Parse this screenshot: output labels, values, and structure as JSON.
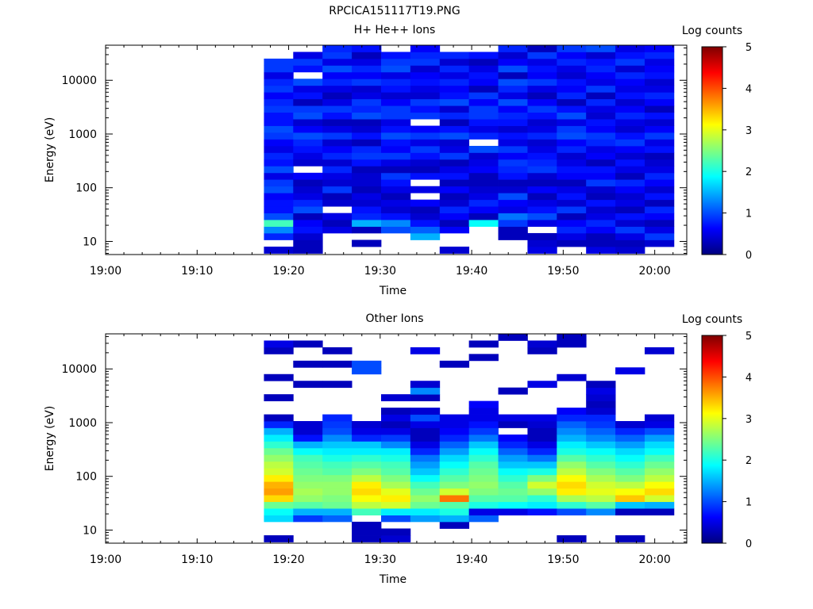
{
  "figure_title": "RPCICA151117T19.PNG",
  "chart_data": [
    {
      "type": "heatmap",
      "title": "H+ He++ Ions",
      "xlabel": "Time",
      "ylabel": "Energy (eV)",
      "colorbar_label": "Log counts",
      "x_tick_labels": [
        "19:00",
        "19:10",
        "19:20",
        "19:30",
        "19:40",
        "19:50",
        "20:00"
      ],
      "x_tick_minutes": [
        0,
        10,
        20,
        30,
        40,
        50,
        60
      ],
      "xlim_minutes": [
        0,
        63.5
      ],
      "y_scale": "log",
      "y_tick_labels": [
        "10",
        "100",
        "1000",
        "10000"
      ],
      "y_tick_values": [
        10,
        100,
        1000,
        10000
      ],
      "ylim": [
        5.7,
        45000
      ],
      "colorbar_ticks": [
        "0",
        "1",
        "2",
        "3",
        "4",
        "5"
      ],
      "color_range": [
        0,
        5
      ],
      "colormap": [
        "#00007f",
        "#0000ff",
        "#007fff",
        "#00ffff",
        "#7fff7f",
        "#ffff00",
        "#ff7f00",
        "#ff0000",
        "#7f0000"
      ],
      "time_bins_start_minutes": [
        17.3,
        20.5,
        23.7,
        26.9,
        30.1,
        33.3,
        36.5,
        39.7,
        42.9,
        46.1,
        49.3,
        52.5,
        55.7,
        58.9
      ],
      "time_bin_width_minutes": 3.2,
      "energy_bin_edges_ev": [
        6.0,
        8.0,
        10.7,
        14.3,
        19.0,
        25.4,
        33.8,
        45.1,
        60.1,
        80.2,
        107,
        143,
        190,
        254,
        338,
        451,
        601,
        802,
        1070,
        1426,
        1901,
        2535,
        3380,
        4507,
        6009,
        8013,
        10684,
        14245,
        18994,
        25325,
        33767,
        45000
      ],
      "log_counts": [
        [
          0.4,
          null,
          0.8,
          1.3,
          2.2,
          1.0,
          0.7,
          0.7,
          0.6,
          1.0,
          0.9,
          0.5,
          1.0,
          0.7,
          0.8,
          0.5,
          0.6,
          0.9,
          1.0,
          0.7,
          0.7,
          0.9,
          0.8,
          0.6,
          0.9,
          0.8,
          0.5,
          0.9,
          0.9,
          null,
          null
        ],
        [
          0.3,
          0.3,
          0.4,
          0.7,
          0.6,
          0.3,
          1.0,
          0.8,
          0.5,
          0.4,
          0.3,
          0.6,
          null,
          0.4,
          0.5,
          0.7,
          0.8,
          1.0,
          0.6,
          0.4,
          1.0,
          0.9,
          0.3,
          0.7,
          0.5,
          1.0,
          null,
          0.7,
          0.9,
          0.5,
          null
        ],
        [
          null,
          null,
          null,
          0.5,
          0.3,
          0.5,
          null,
          0.4,
          0.3,
          0.9,
          0.4,
          0.5,
          0.8,
          0.4,
          0.8,
          0.6,
          0.4,
          0.9,
          0.5,
          0.3,
          0.7,
          0.9,
          0.5,
          0.3,
          0.5,
          0.8,
          0.6,
          1.0,
          0.5,
          0.9,
          0.8
        ],
        [
          null,
          0.3,
          null,
          0.3,
          1.5,
          0.8,
          0.7,
          0.4,
          0.5,
          0.3,
          0.4,
          0.4,
          0.3,
          0.7,
          0.9,
          0.8,
          0.3,
          0.7,
          0.4,
          0.3,
          1.0,
          0.8,
          0.9,
          0.5,
          0.4,
          0.9,
          0.6,
          0.8,
          0.5,
          0.3,
          0.7
        ],
        [
          null,
          null,
          null,
          1.0,
          1.3,
          0.7,
          0.4,
          0.5,
          0.3,
          0.5,
          0.7,
          0.9,
          0.3,
          0.5,
          0.9,
          0.6,
          0.7,
          1.0,
          0.7,
          0.5,
          0.9,
          0.9,
          0.6,
          0.4,
          0.7,
          0.8,
          0.5,
          1.0,
          0.9,
          0.7,
          null
        ],
        [
          null,
          null,
          1.5,
          1.1,
          0.7,
          0.4,
          0.3,
          0.6,
          null,
          0.5,
          null,
          0.7,
          0.3,
          0.4,
          0.7,
          0.9,
          0.5,
          0.9,
          0.6,
          null,
          0.9,
          0.7,
          0.9,
          0.4,
          0.5,
          0.7,
          0.6,
          0.4,
          0.9,
          0.8,
          0.6
        ],
        [
          0.4,
          null,
          null,
          0.6,
          0.3,
          0.6,
          0.8,
          0.4,
          0.3,
          0.6,
          0.3,
          0.7,
          0.5,
          0.3,
          0.9,
          0.5,
          0.4,
          1.0,
          0.7,
          0.3,
          0.8,
          0.4,
          1.0,
          0.7,
          0.6,
          0.8,
          0.5,
          0.8,
          0.4,
          0.8,
          null
        ],
        [
          null,
          null,
          null,
          null,
          1.9,
          0.3,
          0.6,
          0.8,
          0.5,
          0.4,
          0.3,
          0.3,
          0.6,
          0.5,
          0.4,
          1.0,
          null,
          0.8,
          0.5,
          0.7,
          0.9,
          0.9,
          0.6,
          0.9,
          0.3,
          0.6,
          0.7,
          0.5,
          0.3,
          0.7,
          null
        ],
        [
          null,
          null,
          0.3,
          0.3,
          0.9,
          1.2,
          0.5,
          0.6,
          1.0,
          0.4,
          0.3,
          0.7,
          0.8,
          0.9,
          0.6,
          0.9,
          0.5,
          0.7,
          0.4,
          0.7,
          0.8,
          0.6,
          1.0,
          0.5,
          0.8,
          1.0,
          0.3,
          1.0,
          0.6,
          0.4,
          0.8
        ],
        [
          0.5,
          0.4,
          0.3,
          null,
          0.5,
          1.0,
          0.7,
          0.5,
          0.3,
          0.6,
          0.3,
          0.4,
          0.9,
          0.8,
          0.7,
          0.5,
          0.4,
          0.8,
          0.5,
          0.4,
          0.7,
          0.9,
          0.6,
          0.3,
          0.5,
          0.9,
          0.6,
          0.7,
          0.5,
          0.9,
          0.3
        ],
        [
          null,
          0.3,
          0.5,
          0.8,
          0.6,
          0.3,
          0.9,
          0.4,
          0.7,
          0.5,
          0.3,
          0.6,
          0.7,
          0.5,
          0.4,
          0.8,
          0.6,
          1.0,
          0.9,
          0.5,
          1.0,
          0.7,
          0.3,
          0.8,
          0.6,
          0.7,
          0.4,
          0.5,
          0.8,
          0.6,
          0.9
        ],
        [
          0.5,
          0.3,
          0.3,
          0.6,
          0.8,
          0.5,
          0.4,
          0.7,
          0.3,
          0.4,
          0.9,
          0.6,
          0.7,
          0.3,
          0.6,
          0.5,
          0.8,
          0.9,
          0.6,
          0.7,
          0.4,
          0.5,
          0.8,
          0.3,
          0.9,
          0.5,
          0.6,
          0.8,
          0.7,
          0.4,
          1.0
        ],
        [
          0.4,
          0.3,
          0.5,
          0.9,
          0.4,
          0.7,
          0.3,
          0.5,
          0.4,
          0.6,
          0.8,
          0.3,
          0.5,
          0.7,
          0.4,
          0.6,
          0.9,
          0.7,
          0.4,
          0.5,
          0.8,
          0.6,
          0.4,
          0.7,
          0.5,
          0.6,
          0.8,
          0.4,
          0.9,
          0.7,
          0.5
        ],
        [
          null,
          0.4,
          0.9,
          0.5,
          0.3,
          0.6,
          0.8,
          0.3,
          0.7,
          0.4,
          0.6,
          0.8,
          0.5,
          0.4,
          0.3,
          0.7,
          0.5,
          0.9,
          0.6,
          0.4,
          0.7,
          0.3,
          0.6,
          0.8,
          0.5,
          0.4,
          0.7,
          0.6,
          0.5,
          0.8,
          0.6
        ]
      ]
    },
    {
      "type": "heatmap",
      "title": "Other Ions",
      "xlabel": "Time",
      "ylabel": "Energy (eV)",
      "colorbar_label": "Log counts",
      "x_tick_labels": [
        "19:00",
        "19:10",
        "19:20",
        "19:30",
        "19:40",
        "19:50",
        "20:00"
      ],
      "x_tick_minutes": [
        0,
        10,
        20,
        30,
        40,
        50,
        60
      ],
      "xlim_minutes": [
        0,
        63.5
      ],
      "y_scale": "log",
      "y_tick_labels": [
        "10",
        "100",
        "1000",
        "10000"
      ],
      "y_tick_values": [
        10,
        100,
        1000,
        10000
      ],
      "ylim": [
        5.7,
        45000
      ],
      "colorbar_ticks": [
        "0",
        "1",
        "2",
        "3",
        "4",
        "5"
      ],
      "color_range": [
        0,
        5
      ],
      "colormap": [
        "#00007f",
        "#0000ff",
        "#007fff",
        "#00ffff",
        "#7fff7f",
        "#ffff00",
        "#ff7f00",
        "#ff0000",
        "#7f0000"
      ],
      "time_bins_start_minutes": [
        17.3,
        20.5,
        23.7,
        26.9,
        30.1,
        33.3,
        36.5,
        39.7,
        42.9,
        46.1,
        49.3,
        52.5,
        55.7,
        58.9
      ],
      "time_bin_width_minutes": 3.2,
      "energy_bin_edges_ev": [
        6.0,
        8.0,
        10.7,
        14.3,
        19.0,
        25.4,
        33.8,
        45.1,
        60.1,
        80.2,
        107,
        143,
        190,
        254,
        338,
        451,
        601,
        802,
        1070,
        1426,
        1901,
        2535,
        3380,
        4507,
        6009,
        8013,
        10684,
        14245,
        18994,
        25325,
        33767,
        45000
      ],
      "log_counts": [
        [
          0.3,
          null,
          null,
          1.7,
          1.9,
          2.4,
          3.3,
          3.6,
          3.5,
          3.2,
          2.9,
          2.8,
          2.6,
          2.4,
          2.1,
          1.8,
          1.5,
          0.8,
          0.3,
          null,
          null,
          0.3,
          null,
          null,
          0.3,
          null,
          null,
          null,
          0.3,
          0.5,
          null
        ],
        [
          null,
          null,
          null,
          0.9,
          1.5,
          2.3,
          2.6,
          2.7,
          2.6,
          2.5,
          2.4,
          2.3,
          2.2,
          1.9,
          1.5,
          0.7,
          0.4,
          0.4,
          null,
          null,
          null,
          null,
          null,
          0.3,
          null,
          null,
          0.3,
          null,
          null,
          0.3,
          null
        ],
        [
          null,
          null,
          null,
          1.1,
          1.5,
          2.4,
          2.5,
          2.6,
          2.6,
          2.5,
          2.3,
          2.2,
          2.0,
          1.8,
          1.6,
          1.3,
          1.0,
          0.9,
          0.8,
          null,
          null,
          null,
          null,
          0.3,
          null,
          null,
          0.3,
          null,
          0.3,
          null,
          null
        ],
        [
          0.3,
          0.3,
          0.3,
          null,
          2.2,
          2.8,
          3.1,
          3.3,
          3.2,
          2.8,
          2.5,
          2.3,
          2.1,
          1.8,
          1.6,
          0.8,
          0.5,
          0.4,
          null,
          null,
          null,
          null,
          null,
          null,
          null,
          1.0,
          1.0,
          null,
          null,
          null,
          null
        ],
        [
          0.4,
          0.3,
          null,
          1.0,
          1.8,
          2.9,
          3.2,
          3.0,
          2.7,
          2.5,
          2.3,
          2.2,
          2.0,
          1.8,
          1.3,
          0.9,
          0.5,
          0.3,
          0.5,
          0.3,
          null,
          0.4,
          null,
          null,
          null,
          null,
          null,
          null,
          null,
          null,
          null
        ],
        [
          null,
          null,
          null,
          1.4,
          1.8,
          2.4,
          2.6,
          2.4,
          2.2,
          1.9,
          1.6,
          1.4,
          1.2,
          0.8,
          0.5,
          0.3,
          0.3,
          0.5,
          1.0,
          0.4,
          null,
          0.3,
          1.3,
          0.4,
          null,
          null,
          null,
          null,
          0.5,
          null,
          null
        ],
        [
          null,
          null,
          0.3,
          1.5,
          2.0,
          2.3,
          3.8,
          2.9,
          2.5,
          2.3,
          2.1,
          1.9,
          1.7,
          1.4,
          1.1,
          0.8,
          0.6,
          0.5,
          0.5,
          null,
          null,
          null,
          null,
          null,
          null,
          null,
          0.3,
          null,
          null,
          null,
          null
        ],
        [
          null,
          null,
          null,
          1.1,
          0.5,
          2.0,
          2.3,
          2.5,
          2.6,
          2.5,
          2.4,
          2.3,
          2.1,
          1.9,
          1.6,
          1.2,
          0.9,
          0.7,
          0.5,
          0.5,
          0.6,
          null,
          null,
          null,
          null,
          null,
          null,
          0.3,
          null,
          0.3,
          null
        ],
        [
          null,
          null,
          null,
          null,
          0.5,
          1.9,
          2.3,
          2.4,
          2.3,
          2.1,
          1.9,
          1.6,
          1.4,
          1.1,
          0.8,
          0.6,
          null,
          0.3,
          0.5,
          null,
          null,
          null,
          0.3,
          null,
          null,
          null,
          null,
          null,
          null,
          null,
          0.3
        ],
        [
          null,
          null,
          null,
          null,
          0.7,
          1.8,
          2.1,
          2.6,
          2.9,
          2.5,
          2.0,
          1.6,
          1.2,
          0.8,
          0.5,
          0.3,
          0.3,
          0.4,
          0.5,
          null,
          null,
          null,
          null,
          0.5,
          null,
          null,
          null,
          null,
          0.3,
          0.4,
          null
        ],
        [
          0.3,
          null,
          null,
          null,
          1.0,
          2.1,
          2.7,
          3.2,
          3.3,
          3.1,
          2.8,
          2.6,
          2.3,
          2.0,
          1.8,
          1.5,
          1.3,
          1.1,
          0.8,
          0.6,
          null,
          null,
          null,
          null,
          0.4,
          null,
          null,
          null,
          null,
          0.3,
          0.3
        ],
        [
          null,
          null,
          null,
          null,
          1.3,
          2.3,
          2.8,
          3.0,
          2.9,
          2.7,
          2.5,
          2.3,
          2.1,
          1.9,
          1.6,
          1.3,
          1.1,
          0.9,
          0.8,
          0.4,
          0.3,
          0.4,
          0.5,
          0.3,
          null,
          null,
          null,
          null,
          null,
          null,
          null
        ],
        [
          0.3,
          null,
          null,
          null,
          0.3,
          1.6,
          3.4,
          3.1,
          2.8,
          2.5,
          2.3,
          2.1,
          1.9,
          1.7,
          1.4,
          1.1,
          0.8,
          0.4,
          null,
          null,
          null,
          null,
          null,
          null,
          null,
          0.5,
          null,
          null,
          null,
          null,
          null
        ],
        [
          null,
          null,
          null,
          null,
          0.3,
          1.5,
          2.9,
          3.3,
          3.1,
          2.8,
          2.6,
          2.4,
          2.2,
          1.9,
          1.7,
          1.4,
          1.0,
          0.5,
          0.4,
          null,
          null,
          null,
          null,
          null,
          null,
          null,
          null,
          null,
          0.4,
          null,
          null
        ]
      ]
    }
  ]
}
